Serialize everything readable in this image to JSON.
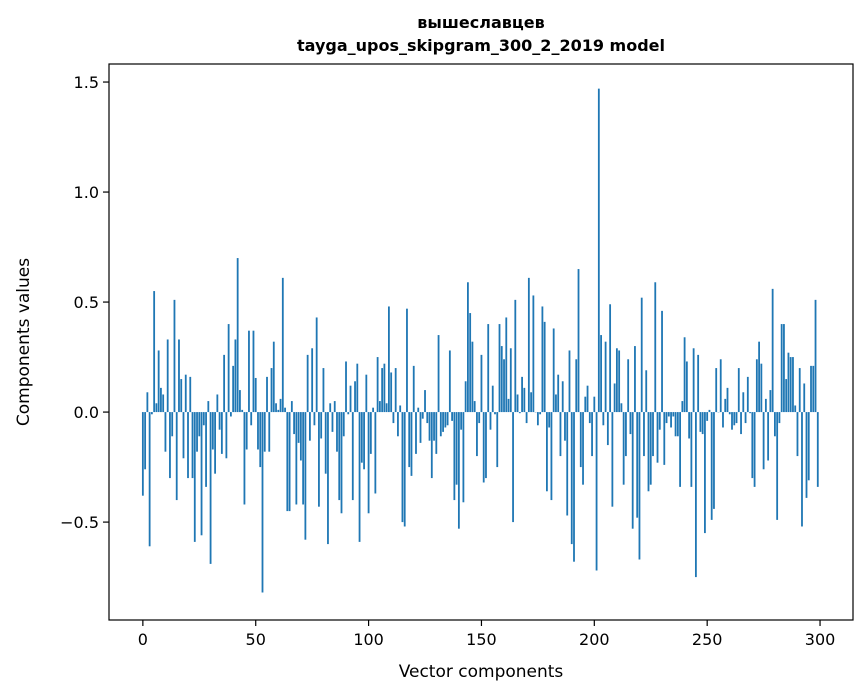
{
  "chart_data": {
    "type": "bar",
    "title": "вышеславцев",
    "subtitle": "tayga_upos_skipgram_300_2_2019 model",
    "xlabel": "Vector components",
    "ylabel": "Components values",
    "xlim": [
      -15,
      314.6
    ],
    "ylim": [
      -0.945,
      1.582
    ],
    "xticks": [
      0,
      50,
      100,
      150,
      200,
      250,
      300
    ],
    "xtick_labels": [
      "0",
      "50",
      "100",
      "150",
      "200",
      "250",
      "300"
    ],
    "yticks": [
      -0.5,
      0.0,
      0.5,
      1.0,
      1.5
    ],
    "ytick_labels": [
      "−0.5",
      "0.0",
      "0.5",
      "1.0",
      "1.5"
    ],
    "grid": false,
    "color": "#1f77b4",
    "values": [
      -0.38,
      -0.26,
      0.09,
      -0.61,
      -0.01,
      0.55,
      0.04,
      0.28,
      0.11,
      0.08,
      -0.18,
      0.33,
      -0.3,
      -0.11,
      0.51,
      -0.4,
      0.33,
      0.15,
      -0.21,
      0.17,
      -0.3,
      0.16,
      -0.3,
      -0.59,
      -0.18,
      -0.11,
      -0.56,
      -0.06,
      -0.34,
      0.05,
      -0.69,
      -0.17,
      -0.28,
      0.08,
      -0.08,
      -0.19,
      0.26,
      -0.21,
      0.4,
      -0.02,
      0.21,
      0.33,
      0.7,
      0.1,
      0.01,
      -0.42,
      -0.17,
      0.37,
      -0.06,
      0.37,
      0.155,
      -0.17,
      -0.25,
      -0.82,
      -0.18,
      0.16,
      -0.18,
      0.2,
      0.32,
      0.04,
      0.01,
      0.06,
      0.61,
      0.02,
      -0.45,
      -0.45,
      0.05,
      -0.1,
      -0.42,
      -0.14,
      -0.22,
      -0.42,
      -0.58,
      0.26,
      -0.13,
      0.29,
      -0.06,
      0.43,
      -0.43,
      -0.12,
      0.2,
      -0.28,
      -0.6,
      0.04,
      -0.09,
      0.05,
      -0.18,
      -0.4,
      -0.46,
      -0.11,
      0.23,
      -0.01,
      0.12,
      -0.4,
      0.14,
      0.22,
      -0.59,
      -0.23,
      -0.26,
      0.17,
      -0.46,
      -0.19,
      0.02,
      -0.37,
      0.25,
      0.05,
      0.2,
      0.22,
      0.04,
      0.48,
      0.18,
      -0.05,
      0.2,
      -0.11,
      0.03,
      -0.5,
      -0.52,
      0.47,
      -0.25,
      -0.29,
      0.21,
      -0.19,
      0.02,
      -0.14,
      -0.03,
      0.1,
      -0.05,
      -0.13,
      -0.3,
      -0.13,
      -0.19,
      0.35,
      -0.11,
      -0.09,
      -0.07,
      -0.06,
      0.28,
      -0.04,
      -0.4,
      -0.33,
      -0.53,
      -0.08,
      -0.41,
      0.14,
      0.59,
      0.45,
      0.32,
      0.05,
      -0.2,
      -0.05,
      0.26,
      -0.32,
      -0.3,
      0.4,
      -0.08,
      0.12,
      -0.01,
      -0.25,
      0.4,
      0.3,
      0.24,
      0.43,
      0.06,
      0.29,
      -0.5,
      0.51,
      0.08,
      -0.005,
      0.16,
      0.11,
      -0.05,
      0.61,
      0.09,
      0.53,
      0.0,
      -0.06,
      -0.01,
      0.48,
      0.41,
      -0.36,
      -0.07,
      -0.4,
      0.38,
      0.08,
      0.17,
      -0.2,
      0.14,
      -0.13,
      -0.47,
      0.28,
      -0.6,
      -0.68,
      0.24,
      0.65,
      -0.25,
      -0.33,
      0.07,
      0.12,
      -0.05,
      -0.2,
      0.07,
      -0.72,
      1.47,
      0.35,
      -0.06,
      0.32,
      -0.15,
      0.49,
      -0.43,
      0.13,
      0.29,
      0.28,
      0.04,
      -0.33,
      -0.2,
      0.24,
      -0.1,
      -0.53,
      0.3,
      -0.48,
      -0.67,
      0.52,
      -0.2,
      0.19,
      -0.36,
      -0.33,
      -0.2,
      0.59,
      -0.23,
      -0.08,
      0.46,
      -0.24,
      -0.05,
      -0.02,
      -0.07,
      -0.02,
      -0.11,
      -0.11,
      -0.34,
      0.05,
      0.34,
      0.23,
      -0.12,
      -0.34,
      0.29,
      -0.75,
      0.26,
      -0.09,
      -0.1,
      -0.55,
      -0.04,
      0.01,
      -0.49,
      -0.44,
      0.2,
      0.0,
      0.24,
      -0.07,
      0.06,
      0.11,
      -0.01,
      -0.08,
      -0.06,
      -0.05,
      0.2,
      -0.1,
      0.09,
      -0.05,
      0.16,
      -0.005,
      -0.3,
      -0.34,
      0.24,
      0.32,
      0.22,
      -0.26,
      0.06,
      -0.22,
      0.1,
      0.56,
      -0.11,
      -0.49,
      -0.05,
      0.4,
      0.4,
      0.15,
      0.27,
      0.25,
      0.25,
      0.03,
      -0.2,
      0.2,
      -0.52,
      0.13,
      -0.39,
      -0.31,
      0.21,
      0.21,
      0.51,
      -0.34
    ]
  }
}
